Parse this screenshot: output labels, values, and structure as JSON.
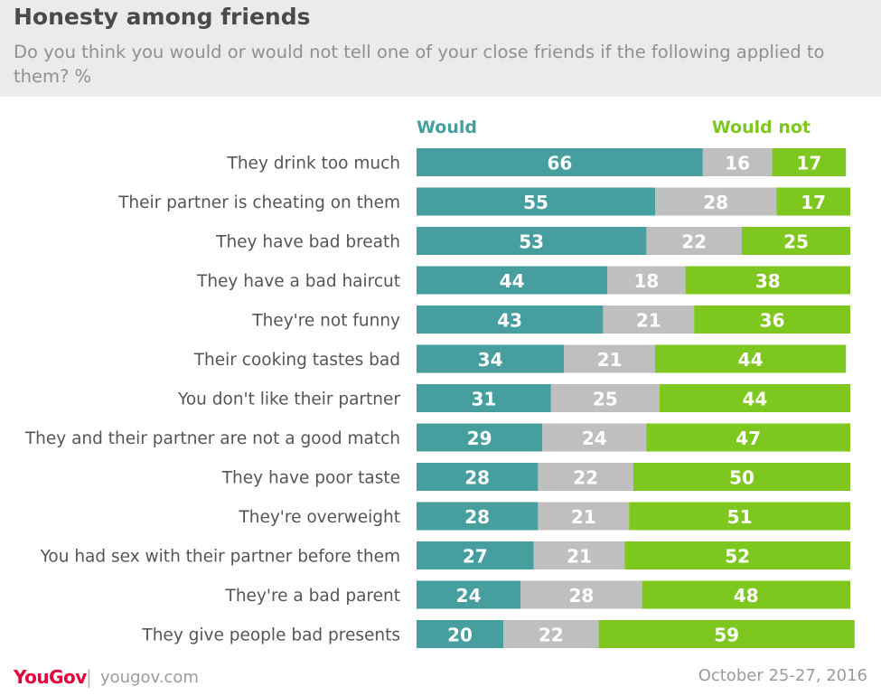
{
  "header": {
    "title": "Honesty among friends",
    "subtitle": "Do you think you would or would not tell one of your close friends if the following applied to them? %"
  },
  "legend": {
    "would": "Would",
    "would_not": "Would not"
  },
  "footer": {
    "logo": "YouGov",
    "separator": "|",
    "site": "yougov.com",
    "date": "October 25-27, 2016"
  },
  "colors": {
    "would": "#469e9e",
    "dont_know": "#bfbfbf",
    "would_not": "#7ec71e",
    "header_bg": "#ebebeb",
    "brand": "#e4003b"
  },
  "chart_data": {
    "type": "bar",
    "stacked": true,
    "orientation": "horizontal",
    "categories": [
      "They drink too much",
      "Their partner is cheating on them",
      "They have bad breath",
      "They have a bad haircut",
      "They're not funny",
      "Their cooking tastes bad",
      "You don't like their partner",
      "They and their partner are not a good match",
      "They have poor taste",
      "They're overweight",
      "You had sex with their partner before them",
      "They're a bad parent",
      "They give people bad presents"
    ],
    "series": [
      {
        "name": "Would",
        "values": [
          66,
          55,
          53,
          44,
          43,
          34,
          31,
          29,
          28,
          28,
          27,
          24,
          20
        ]
      },
      {
        "values": [
          16,
          28,
          22,
          18,
          21,
          21,
          25,
          24,
          22,
          21,
          21,
          28,
          22
        ]
      },
      {
        "name": "Would not",
        "values": [
          17,
          17,
          25,
          38,
          36,
          44,
          44,
          47,
          50,
          51,
          52,
          48,
          59
        ]
      }
    ],
    "xlim": [
      0,
      100
    ],
    "grid": false,
    "legend_position": "top"
  }
}
